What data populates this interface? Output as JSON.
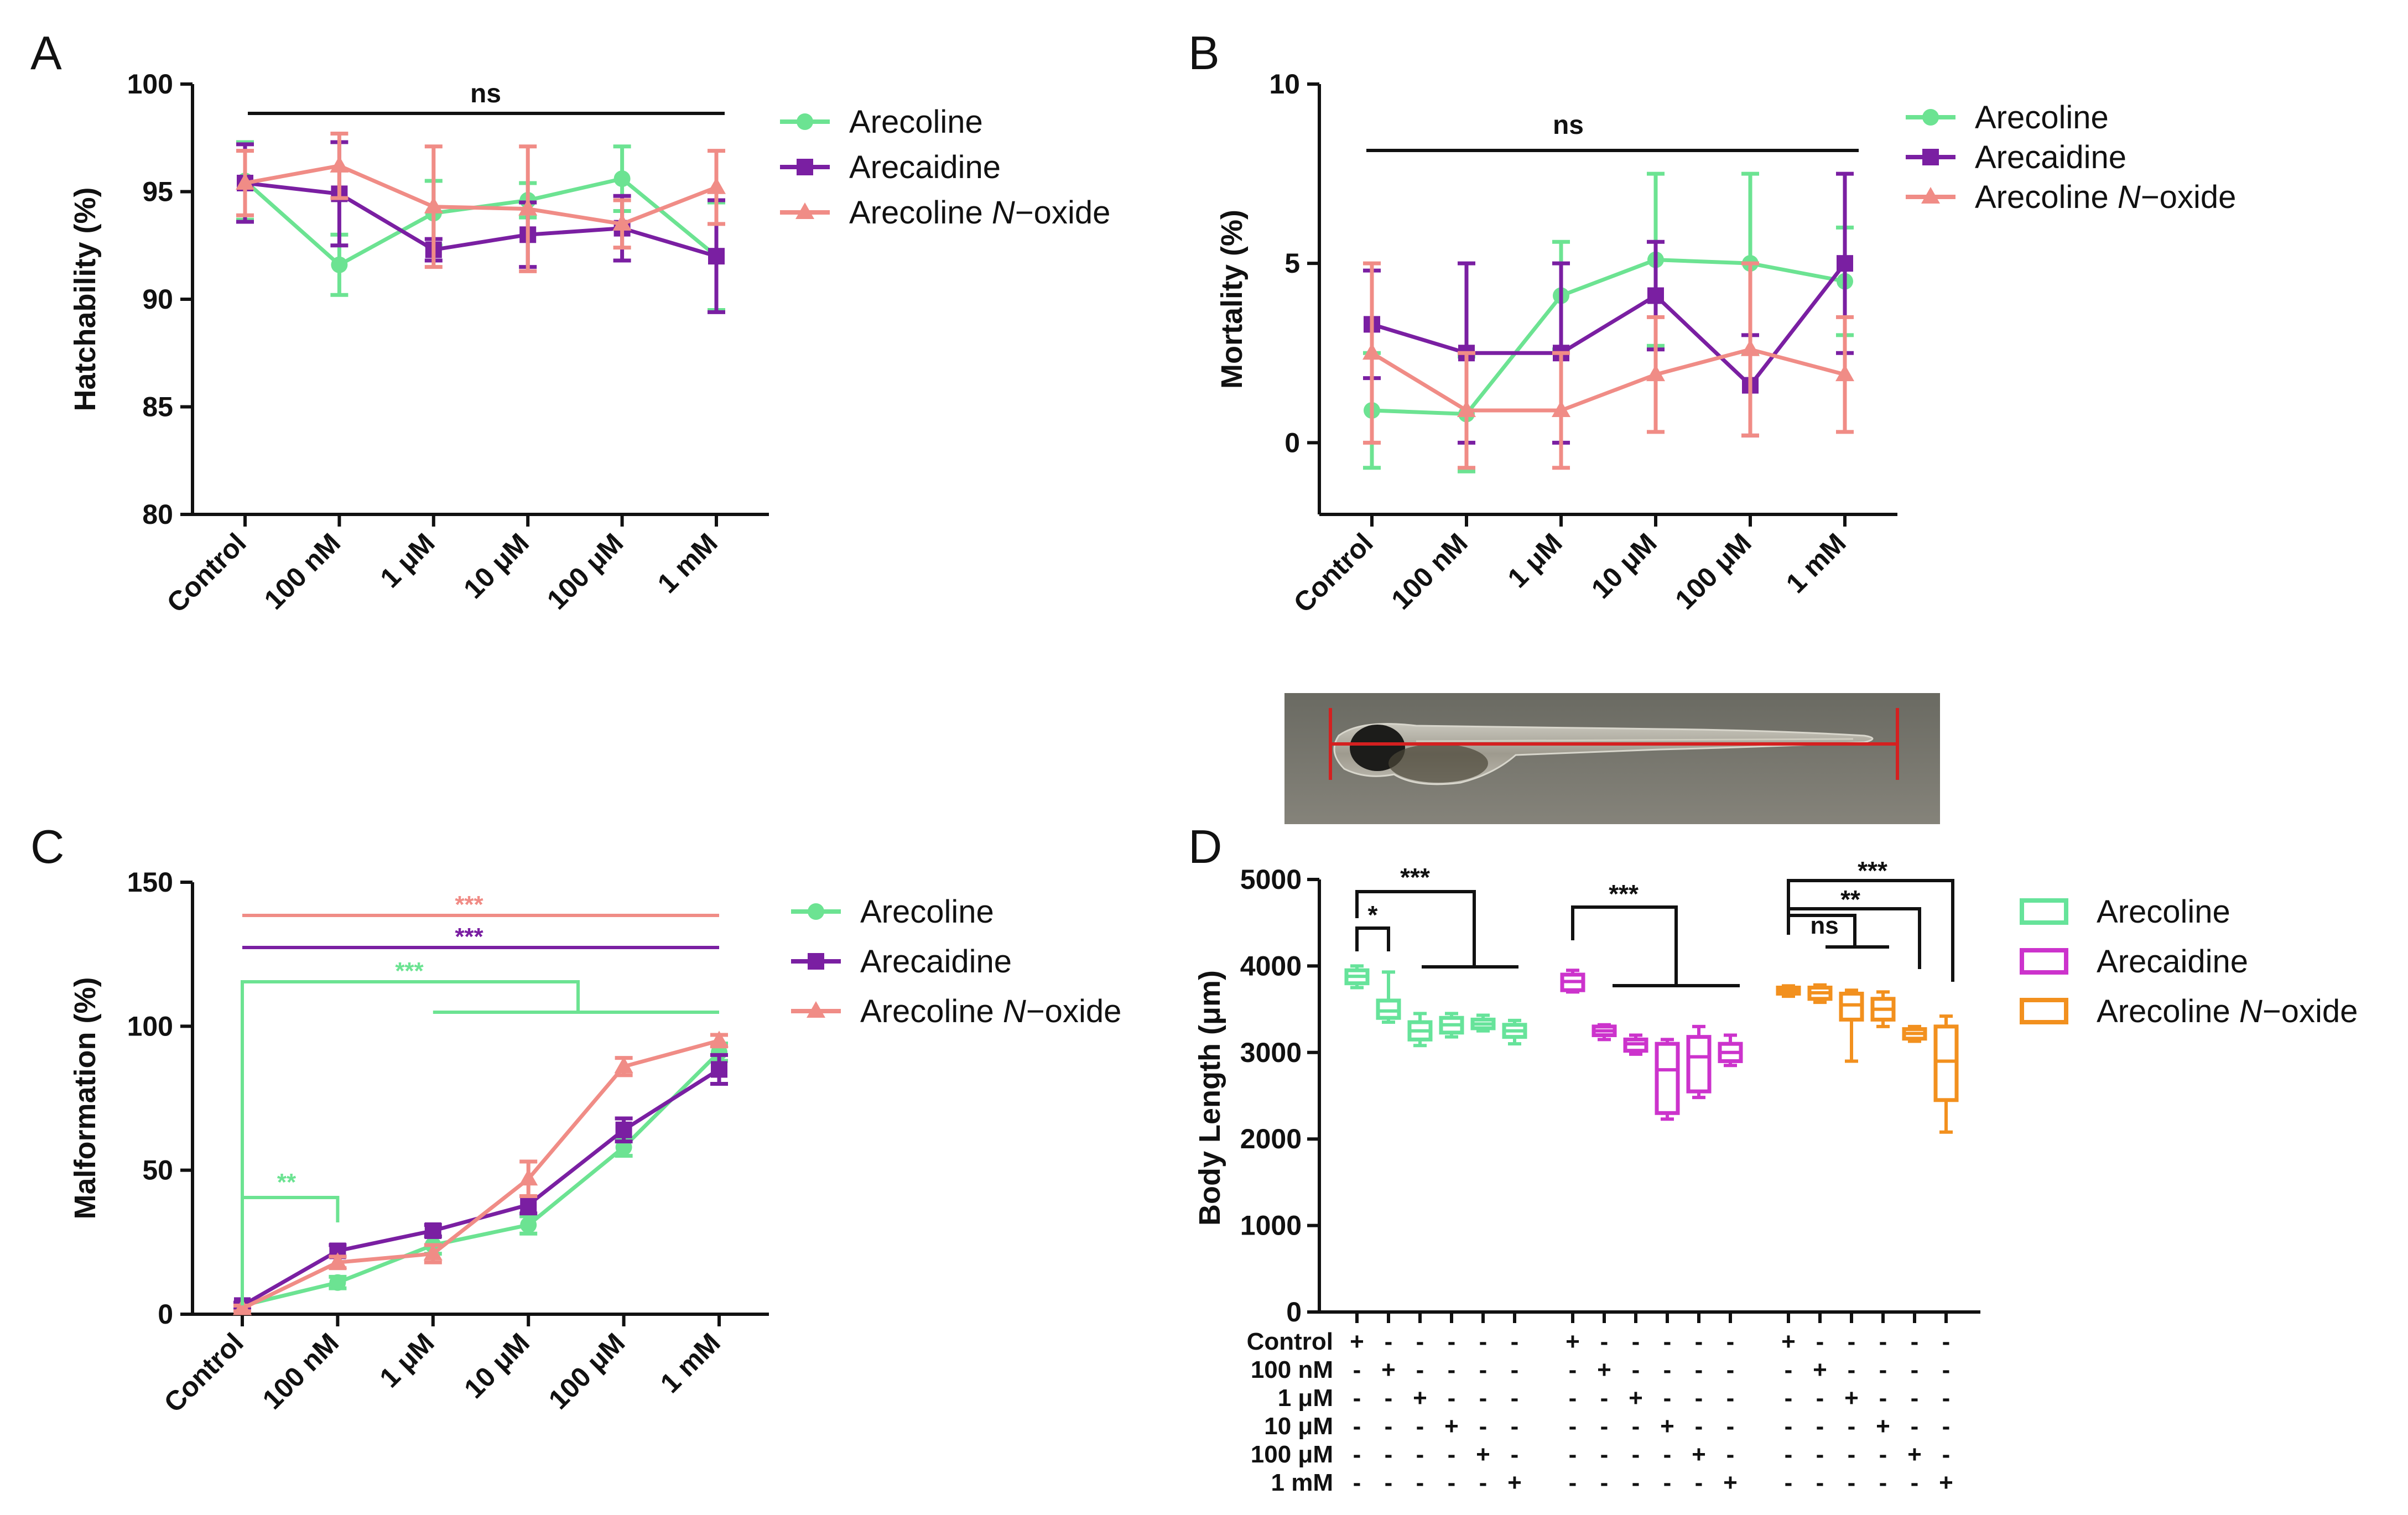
{
  "figure": {
    "colors": {
      "arecoline": "#6ce392",
      "arecaidine": "#7a1fa2",
      "noxide": "#f08c86",
      "boxArecoline": "#66e39a",
      "boxArecaidine": "#cc33cc",
      "boxNoxide": "#f2901e",
      "axis": "#111111",
      "scaleBar": "#d42020"
    }
  },
  "chart_data": [
    {
      "panel": "A",
      "type": "line",
      "ylabel": "Hatchability (%)",
      "categories": [
        "Control",
        "100 nM",
        "1 μM",
        "10 μM",
        "100 μM",
        "1 mM"
      ],
      "ylim": [
        80,
        100
      ],
      "yticks": [
        80,
        85,
        90,
        95,
        100
      ],
      "series": [
        {
          "name": "Arecoline",
          "values": [
            95.5,
            91.6,
            94.0,
            94.6,
            95.6,
            92.0
          ],
          "errors": [
            1.8,
            1.4,
            1.5,
            0.8,
            1.5,
            2.5
          ]
        },
        {
          "name": "Arecaidine",
          "values": [
            95.4,
            94.9,
            92.3,
            93.0,
            93.3,
            92.0
          ],
          "errors": [
            1.8,
            2.4,
            0.5,
            1.5,
            1.5,
            2.6
          ]
        },
        {
          "name": "Arecoline N-oxide",
          "legend_main": "Arecoline ",
          "legend_italic": "N",
          "legend_tail": "−oxide",
          "values": [
            95.4,
            96.2,
            94.3,
            94.2,
            93.5,
            95.2
          ],
          "errors": [
            1.5,
            1.5,
            2.8,
            2.9,
            1.1,
            1.7
          ]
        }
      ],
      "annotations": [
        {
          "label": "ns"
        }
      ]
    },
    {
      "panel": "B",
      "type": "line",
      "ylabel": "Mortality (%)",
      "categories": [
        "Control",
        "100 nM",
        "1 μM",
        "10 μM",
        "100 μM",
        "1 mM"
      ],
      "ylim": [
        -2,
        10
      ],
      "yticks": [
        0,
        5,
        10
      ],
      "series": [
        {
          "name": "Arecoline",
          "values": [
            0.9,
            0.8,
            4.1,
            5.1,
            5.0,
            4.5
          ],
          "errors": [
            1.6,
            1.6,
            1.5,
            2.4,
            2.5,
            1.5
          ]
        },
        {
          "name": "Arecaidine",
          "values": [
            3.3,
            2.5,
            2.5,
            4.1,
            1.6,
            5.0
          ],
          "errors": [
            1.5,
            2.5,
            2.5,
            1.5,
            1.4,
            2.5
          ]
        },
        {
          "name": "Arecoline N-oxide",
          "legend_main": "Arecoline ",
          "legend_italic": "N",
          "legend_tail": "−oxide",
          "values": [
            2.5,
            0.9,
            0.9,
            1.9,
            2.6,
            1.9
          ],
          "errors": [
            2.5,
            1.6,
            1.6,
            1.6,
            2.4,
            1.6
          ]
        }
      ],
      "annotations": [
        {
          "label": "ns"
        }
      ]
    },
    {
      "panel": "C",
      "type": "line",
      "ylabel": "Malformation (%)",
      "categories": [
        "Control",
        "100 nM",
        "1 μM",
        "10 μM",
        "100 μM",
        "1 mM"
      ],
      "ylim": [
        0,
        150
      ],
      "yticks": [
        0,
        50,
        100,
        150
      ],
      "series": [
        {
          "name": "Arecoline",
          "values": [
            3,
            11,
            24,
            31,
            58,
            91
          ],
          "errors": [
            1,
            2,
            3,
            3,
            3,
            3
          ]
        },
        {
          "name": "Arecaidine",
          "values": [
            3,
            22,
            29,
            38,
            64,
            85
          ],
          "errors": [
            1,
            2,
            2,
            3,
            4,
            5
          ]
        },
        {
          "name": "Arecoline N-oxide",
          "legend_main": "Arecoline ",
          "legend_italic": "N",
          "legend_tail": "−oxide",
          "values": [
            2,
            18,
            21,
            47,
            86,
            95
          ],
          "errors": [
            1,
            2,
            3,
            6,
            3,
            2
          ]
        }
      ],
      "annotations": [
        {
          "label": "***",
          "series": "Arecoline N-oxide"
        },
        {
          "label": "***",
          "series": "Arecaidine"
        },
        {
          "label": "***",
          "series": "Arecoline"
        },
        {
          "label": "**",
          "series": "Arecoline"
        }
      ]
    },
    {
      "panel": "D",
      "type": "box",
      "ylabel": "Body Length (μm)",
      "ylim": [
        0,
        5000
      ],
      "yticks": [
        0,
        1000,
        2000,
        3000,
        4000,
        5000
      ],
      "row_labels": [
        "Control",
        "100 nM",
        "1 μM",
        "10 μM",
        "100 μM",
        "1 mM"
      ],
      "plus": "+",
      "minus": "-",
      "groups": [
        {
          "name": "Arecoline",
          "boxes": [
            {
              "min": 3750,
              "q1": 3800,
              "median": 3880,
              "q3": 3950,
              "max": 4000
            },
            {
              "min": 3350,
              "q1": 3400,
              "median": 3480,
              "q3": 3600,
              "max": 3930
            },
            {
              "min": 3080,
              "q1": 3150,
              "median": 3250,
              "q3": 3350,
              "max": 3450
            },
            {
              "min": 3180,
              "q1": 3230,
              "median": 3320,
              "q3": 3400,
              "max": 3450
            },
            {
              "min": 3250,
              "q1": 3280,
              "median": 3330,
              "q3": 3380,
              "max": 3430
            },
            {
              "min": 3100,
              "q1": 3180,
              "median": 3250,
              "q3": 3320,
              "max": 3370
            }
          ]
        },
        {
          "name": "Arecaidine",
          "boxes": [
            {
              "min": 3700,
              "q1": 3720,
              "median": 3820,
              "q3": 3900,
              "max": 3950
            },
            {
              "min": 3150,
              "q1": 3200,
              "median": 3250,
              "q3": 3300,
              "max": 3320
            },
            {
              "min": 2980,
              "q1": 3020,
              "median": 3100,
              "q3": 3150,
              "max": 3200
            },
            {
              "min": 2230,
              "q1": 2300,
              "median": 2800,
              "q3": 3100,
              "max": 3150
            },
            {
              "min": 2480,
              "q1": 2550,
              "median": 2950,
              "q3": 3180,
              "max": 3300
            },
            {
              "min": 2850,
              "q1": 2900,
              "median": 3000,
              "q3": 3100,
              "max": 3200
            }
          ]
        },
        {
          "name": "Arecoline N-oxide",
          "legend_main": "Arecoline ",
          "legend_italic": "N",
          "legend_tail": "−oxide",
          "boxes": [
            {
              "min": 3650,
              "q1": 3680,
              "median": 3720,
              "q3": 3750,
              "max": 3770
            },
            {
              "min": 3580,
              "q1": 3620,
              "median": 3690,
              "q3": 3750,
              "max": 3780
            },
            {
              "min": 2900,
              "q1": 3380,
              "median": 3550,
              "q3": 3680,
              "max": 3720
            },
            {
              "min": 3300,
              "q1": 3380,
              "median": 3500,
              "q3": 3620,
              "max": 3700
            },
            {
              "min": 3130,
              "q1": 3160,
              "median": 3220,
              "q3": 3270,
              "max": 3300
            },
            {
              "min": 2080,
              "q1": 2450,
              "median": 2900,
              "q3": 3300,
              "max": 3420
            }
          ]
        }
      ],
      "annotations": [
        "*",
        "***",
        "***",
        "ns",
        "**",
        "***"
      ]
    }
  ]
}
